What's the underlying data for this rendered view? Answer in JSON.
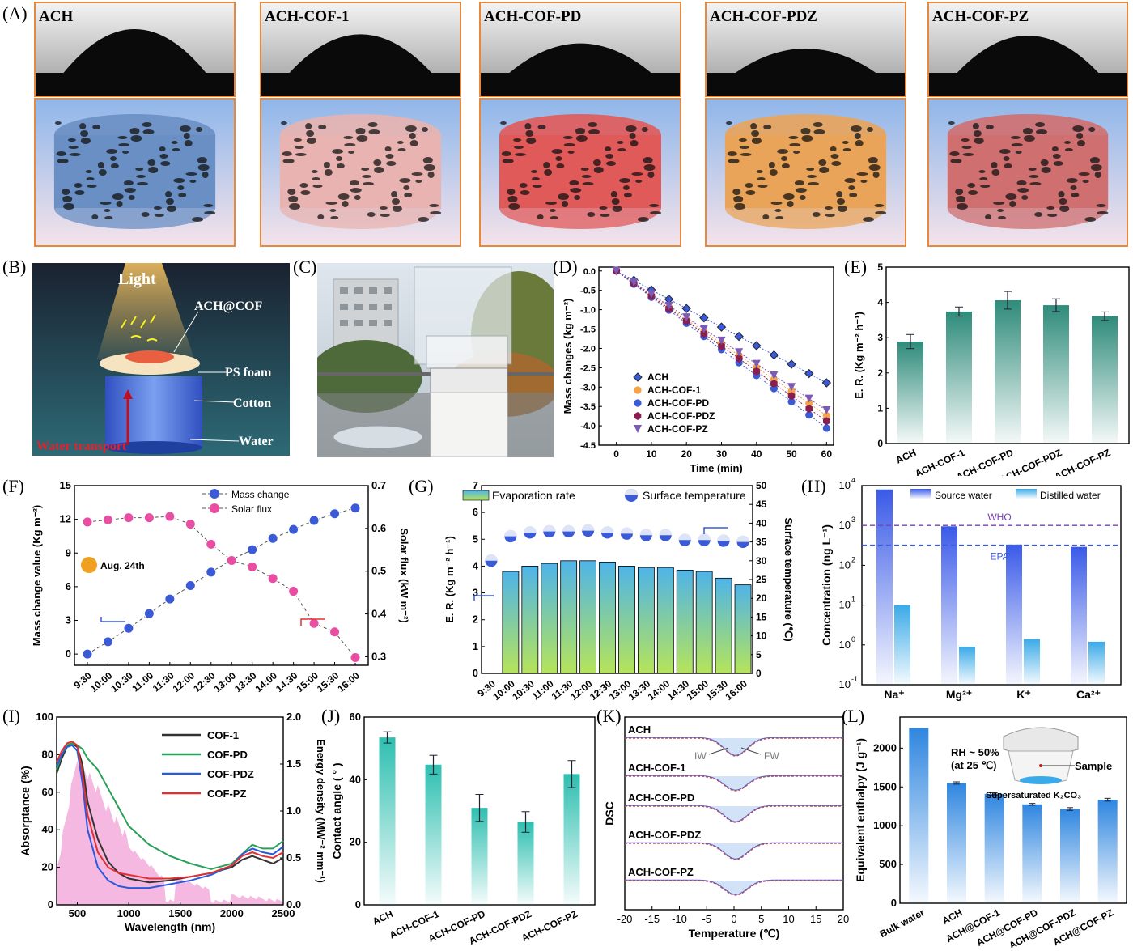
{
  "panel_letters": {
    "A": "(A)",
    "B": "(B)",
    "C": "(C)",
    "D": "(D)",
    "E": "(E)",
    "F": "(F)",
    "G": "(G)",
    "H": "(H)",
    "I": "(I)",
    "J": "(J)",
    "K": "(K)",
    "L": "(L)"
  },
  "panel_A": {
    "samples": [
      {
        "name": "ACH",
        "color": "#6a8fc4"
      },
      {
        "name": "ACH-COF-1",
        "color": "#e8b3b0"
      },
      {
        "name": "ACH-COF-PD",
        "color": "#e15a5a"
      },
      {
        "name": "ACH-COF-PDZ",
        "color": "#e9a45a"
      },
      {
        "name": "ACH-COF-PZ",
        "color": "#cf6f6f"
      }
    ]
  },
  "panel_B": {
    "light": "Light",
    "sample": "ACH@COF",
    "foam": "PS foam",
    "cotton": "Cotton",
    "water": "Water",
    "transport": "Water transport"
  },
  "chart_data": [
    {
      "id": "D",
      "type": "scatter",
      "xlabel": "Time (min)",
      "ylabel": "Mass changes (kg m⁻²)",
      "xlim": [
        -5,
        62
      ],
      "ylim": [
        -4.5,
        0.1
      ],
      "xticks": [
        0,
        10,
        20,
        30,
        40,
        50,
        60
      ],
      "yticks": [
        0.0,
        -0.5,
        -1.0,
        -1.5,
        -2.0,
        -2.5,
        -3.0,
        -3.5,
        -4.0,
        -4.5
      ],
      "x": [
        0,
        5,
        10,
        15,
        20,
        25,
        30,
        35,
        40,
        45,
        50,
        55,
        60
      ],
      "series": [
        {
          "name": "ACH",
          "color": "#3b5bd6",
          "values": [
            0,
            -0.24,
            -0.49,
            -0.73,
            -0.97,
            -1.21,
            -1.45,
            -1.69,
            -1.93,
            -2.17,
            -2.41,
            -2.65,
            -2.89
          ]
        },
        {
          "name": "ACH-COF-1",
          "color": "#f4a34a",
          "values": [
            0,
            -0.31,
            -0.62,
            -0.93,
            -1.25,
            -1.56,
            -1.87,
            -2.18,
            -2.49,
            -2.8,
            -3.11,
            -3.42,
            -3.74
          ]
        },
        {
          "name": "ACH-COF-PD",
          "color": "#3b5bd6",
          "values": [
            0,
            -0.34,
            -0.68,
            -1.01,
            -1.35,
            -1.69,
            -2.03,
            -2.37,
            -2.7,
            -3.04,
            -3.38,
            -3.72,
            -4.06
          ]
        },
        {
          "name": "ACH-COF-PDZ",
          "color": "#8a1f4f",
          "values": [
            0,
            -0.32,
            -0.65,
            -0.97,
            -1.29,
            -1.62,
            -1.94,
            -2.26,
            -2.59,
            -2.91,
            -3.23,
            -3.56,
            -3.88
          ]
        },
        {
          "name": "ACH-COF-PZ",
          "color": "#7b5ab8",
          "values": [
            0,
            -0.3,
            -0.6,
            -0.9,
            -1.2,
            -1.5,
            -1.8,
            -2.1,
            -2.4,
            -2.7,
            -3.0,
            -3.3,
            -3.6
          ]
        }
      ]
    },
    {
      "id": "E",
      "type": "bar",
      "ylabel": "E. R. (Kg m⁻² h⁻¹)",
      "ylim": [
        0,
        5
      ],
      "yticks": [
        0,
        1,
        2,
        3,
        4,
        5
      ],
      "categories": [
        "ACH",
        "ACH-COF-1",
        "ACH-COF-PD",
        "ACH-COF-PDZ",
        "ACH-COF-PZ"
      ],
      "values": [
        2.89,
        3.74,
        4.06,
        3.92,
        3.61
      ],
      "errors": [
        0.2,
        0.13,
        0.25,
        0.18,
        0.12
      ],
      "color": "#2e8b7a"
    },
    {
      "id": "F",
      "type": "line",
      "ylabel": "Mass change value (Kg m⁻²)",
      "y2label": "Solar flux (kW m⁻²)",
      "ylim": [
        -1,
        15
      ],
      "yticks": [
        0,
        3,
        6,
        9,
        12,
        15
      ],
      "y2lim": [
        0.28,
        0.7
      ],
      "y2ticks": [
        0.3,
        0.4,
        0.5,
        0.6,
        0.7
      ],
      "categories": [
        "9:30",
        "10:00",
        "10:30",
        "11:00",
        "11:30",
        "12:00",
        "12:30",
        "13:00",
        "13:30",
        "14:00",
        "14:30",
        "15:00",
        "15:30",
        "16:00"
      ],
      "annotation": "Aug. 24th",
      "series": [
        {
          "name": "Mass change",
          "axis": "left",
          "color": "#3b5bd6",
          "values": [
            0,
            1.1,
            2.3,
            3.6,
            4.9,
            6.1,
            7.3,
            8.4,
            9.3,
            10.3,
            11.1,
            11.9,
            12.5,
            13.0
          ]
        },
        {
          "name": "Solar flux",
          "axis": "right",
          "color": "#e84fa3",
          "values": [
            0.615,
            0.62,
            0.625,
            0.625,
            0.628,
            0.61,
            0.563,
            0.525,
            0.51,
            0.483,
            0.453,
            0.378,
            0.358,
            0.298
          ]
        }
      ]
    },
    {
      "id": "G",
      "type": "bar",
      "ylabel": "E. R. (Kg m⁻² h⁻¹)",
      "y2label": "Surface temperature (℃)",
      "ylim": [
        0,
        7
      ],
      "yticks": [
        0,
        1,
        2,
        3,
        4,
        5,
        6,
        7
      ],
      "y2lim": [
        0,
        50
      ],
      "y2ticks": [
        0,
        5,
        10,
        15,
        20,
        25,
        30,
        35,
        40,
        45,
        50
      ],
      "categories": [
        "9:30",
        "10:00",
        "10:30",
        "11:00",
        "11:30",
        "12:00",
        "12:30",
        "13:00",
        "13:30",
        "14:00",
        "14:30",
        "15:00",
        "15:30",
        "16:00"
      ],
      "series": [
        {
          "name": "Evaporation rate",
          "type": "bar",
          "values": [
            null,
            3.8,
            4.0,
            4.1,
            4.2,
            4.2,
            4.15,
            4.0,
            3.95,
            3.95,
            3.85,
            3.8,
            3.55,
            3.3
          ]
        },
        {
          "name": "Surface temperature",
          "type": "scatter",
          "values": [
            30,
            36.5,
            37.5,
            37.8,
            37.8,
            38,
            37.5,
            37.2,
            36.8,
            36.8,
            35.5,
            35.5,
            35.3,
            35
          ]
        }
      ]
    },
    {
      "id": "H",
      "type": "bar",
      "log": true,
      "ylabel": "Concentration (ng L⁻¹)",
      "ylim_exp": [
        -1,
        4
      ],
      "yticks_exp": [
        -1,
        0,
        1,
        2,
        3,
        4
      ],
      "categories": [
        "Na⁺",
        "Mg²⁺",
        "K⁺",
        "Ca²⁺"
      ],
      "series": [
        {
          "name": "Source  water",
          "color": "#3a5ae8",
          "values": [
            8000,
            950,
            330,
            290
          ]
        },
        {
          "name": "Distilled  water",
          "color": "#3aaae8",
          "values": [
            10,
            0.9,
            1.4,
            1.2
          ]
        }
      ],
      "lines": [
        {
          "name": "WHO",
          "value": 1000,
          "color": "#7b3fb8"
        },
        {
          "name": "EPA",
          "value": 320,
          "color": "#3a5ae8"
        }
      ]
    },
    {
      "id": "I",
      "type": "line",
      "xlabel": "Wavelength (nm)",
      "ylabel": "Absorptance (%)",
      "y2label": "Energy density (MW⁻² mm⁻¹)",
      "xlim": [
        300,
        2500
      ],
      "xticks": [
        500,
        1000,
        1500,
        2000,
        2500
      ],
      "ylim": [
        0,
        100
      ],
      "yticks": [
        0,
        20,
        40,
        60,
        80,
        100
      ],
      "y2lim": [
        0,
        2.0
      ],
      "y2ticks": [
        0.0,
        0.5,
        1.0,
        1.5,
        2.0
      ],
      "series": [
        {
          "name": "COF-1",
          "color": "#333333",
          "x": [
            300,
            350,
            400,
            450,
            500,
            550,
            600,
            700,
            800,
            900,
            1000,
            1200,
            1400,
            1600,
            1800,
            2000,
            2100,
            2200,
            2300,
            2400,
            2500
          ],
          "values": [
            70,
            78,
            84,
            86,
            84,
            75,
            55,
            35,
            23,
            17,
            14,
            12,
            13,
            15,
            17,
            20,
            24,
            26,
            24,
            22,
            25
          ]
        },
        {
          "name": "COF-PD",
          "color": "#2aa05a",
          "x": [
            300,
            350,
            400,
            450,
            500,
            550,
            600,
            700,
            800,
            900,
            1000,
            1200,
            1400,
            1600,
            1800,
            2000,
            2100,
            2200,
            2300,
            2400,
            2500
          ],
          "values": [
            72,
            80,
            85,
            86,
            85,
            83,
            78,
            72,
            62,
            52,
            42,
            32,
            26,
            22,
            19,
            22,
            27,
            32,
            30,
            30,
            34
          ]
        },
        {
          "name": "COF-PDZ",
          "color": "#2a5adc",
          "x": [
            300,
            350,
            400,
            450,
            500,
            550,
            600,
            700,
            800,
            900,
            1000,
            1200,
            1400,
            1600,
            1800,
            2000,
            2100,
            2200,
            2300,
            2400,
            2500
          ],
          "values": [
            74,
            80,
            84,
            85,
            82,
            65,
            40,
            20,
            13,
            10,
            9,
            9,
            11,
            13,
            16,
            21,
            27,
            30,
            28,
            27,
            31
          ]
        },
        {
          "name": "COF-PZ",
          "color": "#e03030",
          "x": [
            300,
            350,
            400,
            450,
            500,
            550,
            600,
            700,
            800,
            900,
            1000,
            1200,
            1400,
            1600,
            1800,
            2000,
            2100,
            2200,
            2300,
            2400,
            2500
          ],
          "values": [
            76,
            82,
            86,
            87,
            85,
            70,
            48,
            28,
            20,
            17,
            16,
            14,
            14,
            15,
            17,
            21,
            26,
            28,
            26,
            25,
            28
          ]
        }
      ]
    },
    {
      "id": "J",
      "type": "bar",
      "ylabel": "Contact angle ( ° )",
      "ylim": [
        0,
        60
      ],
      "yticks": [
        0,
        20,
        40,
        60
      ],
      "categories": [
        "ACH",
        "ACH-COF-1",
        "ACH-COF-PD",
        "ACH-COF-PDZ",
        "ACH-COF-PZ"
      ],
      "values": [
        53.5,
        44.8,
        31.0,
        26.5,
        41.8
      ],
      "errors": [
        1.8,
        3.0,
        4.3,
        3.3,
        4.3
      ],
      "color": "#2ebfb0"
    },
    {
      "id": "K",
      "type": "line",
      "xlabel": "Temperature (℃)",
      "ylabel": "DSC",
      "xlim": [
        -20,
        20
      ],
      "xticks": [
        -20,
        -15,
        -10,
        -5,
        0,
        5,
        10,
        15,
        20
      ],
      "series_names": [
        "ACH",
        "ACH-COF-1",
        "ACH-COF-PD",
        "ACH-COF-PDZ",
        "ACH-COF-PZ"
      ],
      "annotations": [
        "IW",
        "FW"
      ]
    },
    {
      "id": "L",
      "type": "bar",
      "ylabel": "Equivalent enthalpy (J g⁻¹)",
      "ylim": [
        0,
        2400
      ],
      "yticks": [
        0,
        500,
        1000,
        1500,
        2000
      ],
      "categories": [
        "Bulk water",
        "ACH",
        "ACH@COF-1",
        "ACH@COF-PD",
        "ACH@COF-PDZ",
        "ACH@COF-PZ"
      ],
      "values": [
        2260,
        1550,
        1410,
        1275,
        1215,
        1335
      ],
      "errors": [
        0,
        15,
        15,
        12,
        18,
        18
      ],
      "color": "#2f86e0",
      "inset": {
        "rh": "RH ~ 50%",
        "temp": "(at 25 ℃)",
        "sample": "Sample",
        "salt": "Supersaturated K₂CO₃"
      }
    }
  ]
}
